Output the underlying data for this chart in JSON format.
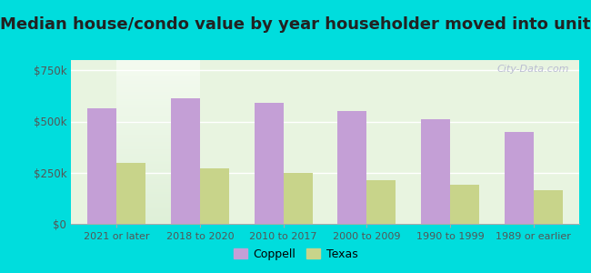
{
  "title": "Median house/condo value by year householder moved into unit",
  "categories": [
    "2021 or later",
    "2018 to 2020",
    "2010 to 2017",
    "2000 to 2009",
    "1990 to 1999",
    "1989 or earlier"
  ],
  "coppell_values": [
    565000,
    615000,
    590000,
    550000,
    510000,
    450000
  ],
  "texas_values": [
    300000,
    270000,
    248000,
    215000,
    193000,
    163000
  ],
  "coppell_color": "#c49fd6",
  "texas_color": "#c8d48a",
  "background_top": "#f0faf0",
  "background_bottom": "#e0f0e0",
  "outer_background": "#00dddd",
  "yticks": [
    0,
    250000,
    500000,
    750000
  ],
  "ytick_labels": [
    "$0",
    "$250k",
    "$500k",
    "$750k"
  ],
  "ylim": [
    0,
    800000
  ],
  "bar_width": 0.35,
  "title_fontsize": 13,
  "watermark_text": "City-Data.com",
  "legend_labels": [
    "Coppell",
    "Texas"
  ]
}
